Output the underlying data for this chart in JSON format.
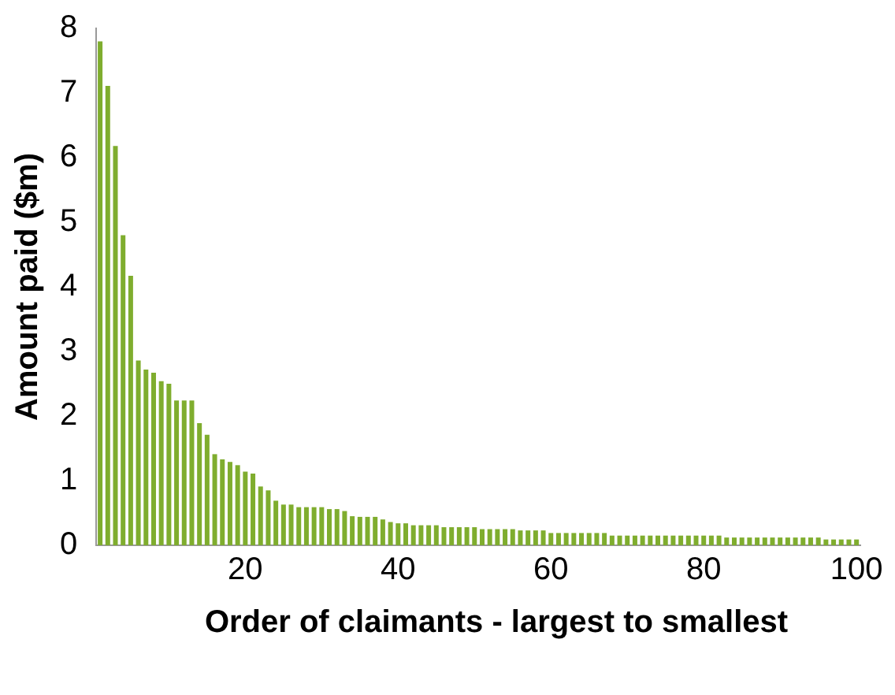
{
  "chart_data": {
    "type": "bar",
    "xlabel": "Order of claimants - largest to smallest",
    "ylabel": "Amount paid ($m)",
    "categories": [
      null,
      null,
      null,
      null,
      null,
      null,
      null,
      null,
      null,
      null,
      null,
      null,
      null,
      null,
      null,
      null,
      null,
      null,
      null,
      "20",
      null,
      null,
      null,
      null,
      null,
      null,
      null,
      null,
      null,
      null,
      null,
      null,
      null,
      null,
      null,
      null,
      null,
      null,
      null,
      "40",
      null,
      null,
      null,
      null,
      null,
      null,
      null,
      null,
      null,
      null,
      null,
      null,
      null,
      null,
      null,
      null,
      null,
      null,
      null,
      "60",
      null,
      null,
      null,
      null,
      null,
      null,
      null,
      null,
      null,
      null,
      null,
      null,
      null,
      null,
      null,
      null,
      null,
      null,
      null,
      "80",
      null,
      null,
      null,
      null,
      null,
      null,
      null,
      null,
      null,
      null,
      null,
      null,
      null,
      null,
      null,
      null,
      null,
      null,
      null,
      "100"
    ],
    "values": [
      7.8,
      7.11,
      6.18,
      4.8,
      4.17,
      2.86,
      2.72,
      2.67,
      2.54,
      2.5,
      2.24,
      2.24,
      2.24,
      1.89,
      1.71,
      1.41,
      1.33,
      1.29,
      1.24,
      1.14,
      1.11,
      0.91,
      0.85,
      0.69,
      0.63,
      0.63,
      0.59,
      0.59,
      0.59,
      0.59,
      0.56,
      0.56,
      0.53,
      0.45,
      0.44,
      0.44,
      0.44,
      0.4,
      0.36,
      0.34,
      0.34,
      0.31,
      0.31,
      0.31,
      0.31,
      0.28,
      0.28,
      0.28,
      0.28,
      0.28,
      0.25,
      0.25,
      0.25,
      0.25,
      0.25,
      0.23,
      0.23,
      0.23,
      0.23,
      0.19,
      0.19,
      0.19,
      0.19,
      0.19,
      0.19,
      0.19,
      0.19,
      0.15,
      0.15,
      0.15,
      0.15,
      0.15,
      0.15,
      0.15,
      0.15,
      0.15,
      0.15,
      0.15,
      0.15,
      0.15,
      0.15,
      0.15,
      0.12,
      0.12,
      0.12,
      0.12,
      0.12,
      0.12,
      0.12,
      0.12,
      0.12,
      0.12,
      0.12,
      0.12,
      0.12,
      0.09,
      0.09,
      0.09,
      0.09,
      0.09
    ],
    "color": "#7fad2e",
    "ylim": [
      0,
      8
    ],
    "yticks": [
      0,
      1,
      2,
      3,
      4,
      5,
      6,
      7,
      8
    ],
    "grid": false,
    "legend": false
  }
}
